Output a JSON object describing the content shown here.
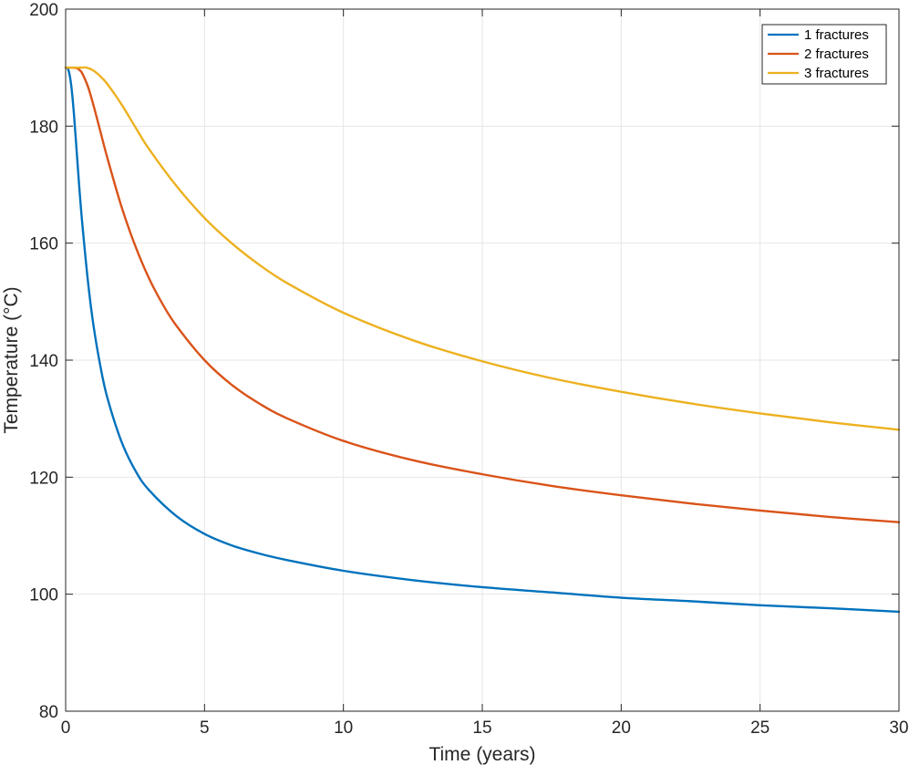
{
  "chart_data": {
    "type": "line",
    "title": "",
    "xlabel": "Time (years)",
    "ylabel": "Temperature (°C)",
    "xlim": [
      0,
      30
    ],
    "ylim": [
      80,
      200
    ],
    "xticks": [
      0,
      5,
      10,
      15,
      20,
      25,
      30
    ],
    "yticks": [
      80,
      100,
      120,
      140,
      160,
      180,
      200
    ],
    "xtick_labels": [
      "0",
      "5",
      "10",
      "15",
      "20",
      "25",
      "30"
    ],
    "ytick_labels": [
      "80",
      "100",
      "120",
      "140",
      "160",
      "180",
      "200"
    ],
    "grid": true,
    "legend_position": "top-right",
    "series": [
      {
        "name": "1 fractures",
        "color": "#0072BD",
        "x": [
          0,
          0.1,
          0.2,
          0.3,
          0.4,
          0.5,
          0.6,
          0.8,
          1.0,
          1.25,
          1.5,
          2.0,
          2.5,
          3.0,
          4.0,
          5.0,
          6.0,
          7.0,
          8.0,
          10.0,
          12.5,
          15.0,
          17.5,
          20.0,
          22.5,
          25.0,
          27.5,
          30.0
        ],
        "values": [
          190,
          189.6,
          187,
          182,
          175.5,
          169,
          163.3,
          153.6,
          146,
          139,
          133.6,
          126.2,
          121.2,
          117.8,
          113.3,
          110.3,
          108.3,
          106.9,
          105.8,
          104,
          102.4,
          101.2,
          100.3,
          99.4,
          98.8,
          98.1,
          97.6,
          97
        ]
      },
      {
        "name": "2 fractures",
        "color": "#D95319",
        "x": [
          0,
          0.2,
          0.4,
          0.5,
          0.6,
          0.8,
          1.0,
          1.25,
          1.5,
          2.0,
          2.5,
          3.0,
          3.5,
          4.0,
          5.0,
          6.0,
          7.0,
          8.0,
          10.0,
          12.5,
          15.0,
          17.5,
          20.0,
          22.5,
          25.0,
          27.5,
          30.0
        ],
        "values": [
          190,
          190,
          189.9,
          189.6,
          189,
          186.8,
          183.6,
          179.1,
          174.6,
          166.4,
          159.6,
          154,
          149.5,
          145.8,
          140,
          135.7,
          132.5,
          130,
          126.2,
          122.9,
          120.5,
          118.5,
          116.9,
          115.5,
          114.3,
          113.2,
          112.3
        ]
      },
      {
        "name": "3 fractures",
        "color": "#EDB120",
        "x": [
          0,
          0.5,
          0.75,
          1.0,
          1.25,
          1.5,
          2.0,
          2.5,
          3.0,
          4.0,
          5.0,
          6.0,
          7.0,
          8.0,
          10.0,
          12.5,
          15.0,
          17.5,
          20.0,
          22.5,
          25.0,
          27.5,
          30.0
        ],
        "values": [
          190,
          190,
          190,
          189.5,
          188.5,
          187.2,
          183.8,
          179.9,
          176.1,
          169.7,
          164.3,
          159.9,
          156.2,
          153.1,
          148.1,
          143.4,
          139.8,
          136.9,
          134.6,
          132.6,
          130.9,
          129.4,
          128.1
        ]
      }
    ]
  }
}
